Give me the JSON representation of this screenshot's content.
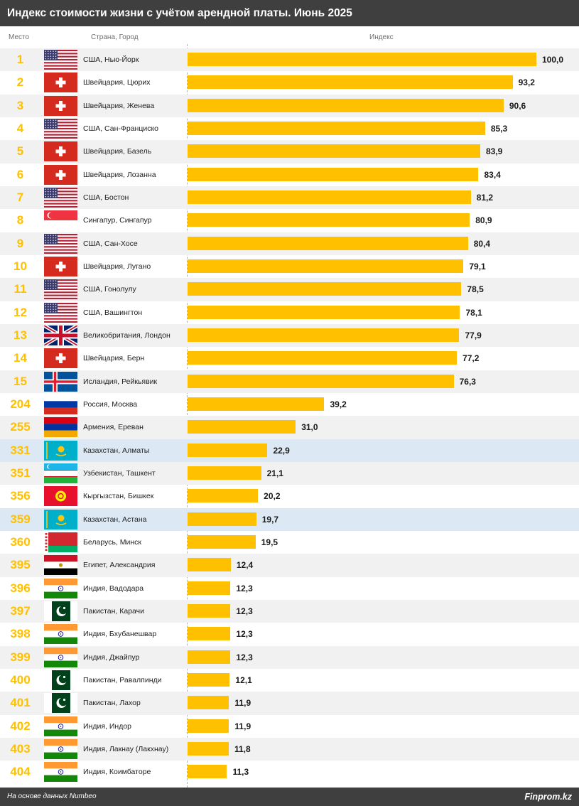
{
  "title": "Индекс стоимости жизни с учётом арендной платы. Июнь 2025",
  "headers": {
    "rank": "Место",
    "city": "Страна, Город",
    "index": "Индекс"
  },
  "footer": {
    "source": "На основе данных Numbeo",
    "brand": "Finprom.kz"
  },
  "colors": {
    "bar": "#ffc000",
    "rank": "#ffc000",
    "highlight_row": "#dce8f3",
    "header_bg": "#3f3f3f"
  },
  "chart_data": {
    "type": "bar",
    "orientation": "horizontal",
    "xlim": [
      0,
      100
    ],
    "rows": [
      {
        "rank": "1",
        "city": "США, Нью-Йорк",
        "value": "100,0",
        "flag": "usa-flag"
      },
      {
        "rank": "2",
        "city": "Швейцария, Цюрих",
        "value": "93,2",
        "flag": "switzerland-flag"
      },
      {
        "rank": "3",
        "city": "Швейцария, Женева",
        "value": "90,6",
        "flag": "switzerland-flag"
      },
      {
        "rank": "4",
        "city": "США, Сан-Франциско",
        "value": "85,3",
        "flag": "usa-flag"
      },
      {
        "rank": "5",
        "city": "Швейцария, Базель",
        "value": "83,9",
        "flag": "switzerland-flag"
      },
      {
        "rank": "6",
        "city": "Швейцария, Лозанна",
        "value": "83,4",
        "flag": "switzerland-flag"
      },
      {
        "rank": "7",
        "city": "США, Бостон",
        "value": "81,2",
        "flag": "usa-flag"
      },
      {
        "rank": "8",
        "city": "Сингапур, Сингапур",
        "value": "80,9",
        "flag": "singapore-flag"
      },
      {
        "rank": "9",
        "city": "США, Сан-Хосе",
        "value": "80,4",
        "flag": "usa-flag"
      },
      {
        "rank": "10",
        "city": "Швейцария, Лугано",
        "value": "79,1",
        "flag": "switzerland-flag"
      },
      {
        "rank": "11",
        "city": "США, Гонолулу",
        "value": "78,5",
        "flag": "usa-flag"
      },
      {
        "rank": "12",
        "city": "США, Вашингтон",
        "value": "78,1",
        "flag": "usa-flag"
      },
      {
        "rank": "13",
        "city": "Великобритания, Лондон",
        "value": "77,9",
        "flag": "uk-flag"
      },
      {
        "rank": "14",
        "city": "Швейцария, Берн",
        "value": "77,2",
        "flag": "switzerland-flag"
      },
      {
        "rank": "15",
        "city": "Исландия, Рейкьявик",
        "value": "76,3",
        "flag": "iceland-flag"
      },
      {
        "rank": "204",
        "city": "Россия, Москва",
        "value": "39,2",
        "flag": "russia-flag"
      },
      {
        "rank": "255",
        "city": "Армения, Ереван",
        "value": "31,0",
        "flag": "armenia-flag"
      },
      {
        "rank": "331",
        "city": "Казахстан, Алматы",
        "value": "22,9",
        "flag": "kazakhstan-flag",
        "highlight": true
      },
      {
        "rank": "351",
        "city": "Узбекистан, Ташкент",
        "value": "21,1",
        "flag": "uzbekistan-flag"
      },
      {
        "rank": "356",
        "city": "Кыргызстан, Бишкек",
        "value": "20,2",
        "flag": "kyrgyzstan-flag"
      },
      {
        "rank": "359",
        "city": "Казахстан, Астана",
        "value": "19,7",
        "flag": "kazakhstan-flag",
        "highlight": true
      },
      {
        "rank": "360",
        "city": "Беларусь, Минск",
        "value": "19,5",
        "flag": "belarus-flag"
      },
      {
        "rank": "395",
        "city": "Египет, Александрия",
        "value": "12,4",
        "flag": "egypt-flag"
      },
      {
        "rank": "396",
        "city": "Индия, Вадодара",
        "value": "12,3",
        "flag": "india-flag"
      },
      {
        "rank": "397",
        "city": "Пакистан, Карачи",
        "value": "12,3",
        "flag": "pakistan-flag"
      },
      {
        "rank": "398",
        "city": "Индия, Бхубанешвар",
        "value": "12,3",
        "flag": "india-flag"
      },
      {
        "rank": "399",
        "city": "Индия, Джайпур",
        "value": "12,3",
        "flag": "india-flag"
      },
      {
        "rank": "400",
        "city": "Пакистан, Равалпинди",
        "value": "12,1",
        "flag": "pakistan-flag"
      },
      {
        "rank": "401",
        "city": "Пакистан, Лахор",
        "value": "11,9",
        "flag": "pakistan-flag"
      },
      {
        "rank": "402",
        "city": "Индия, Индор",
        "value": "11,9",
        "flag": "india-flag"
      },
      {
        "rank": "403",
        "city": "Индия, Лакнау (Лакхнау)",
        "value": "11,8",
        "flag": "india-flag"
      },
      {
        "rank": "404",
        "city": "Индия, Коимбаторе",
        "value": "11,3",
        "flag": "india-flag"
      }
    ]
  }
}
